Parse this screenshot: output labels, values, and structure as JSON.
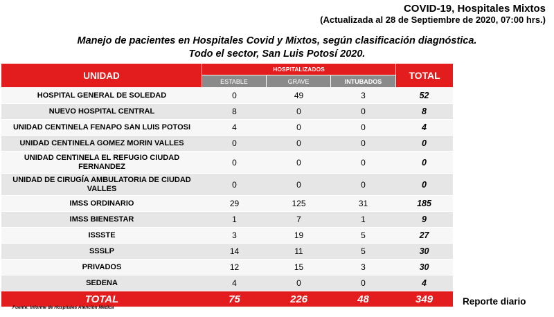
{
  "header": {
    "title": "COVID-19,  Hospitales Mixtos",
    "updated": "(Actualizada al 28 de Septiembre de 2020,  07:00  hrs.)"
  },
  "subtitle": {
    "line1": "Manejo de pacientes en Hospitales Covid y Mixtos, según clasificación diagnóstica.",
    "line2": "Todo el sector, San Luis Potosí 2020."
  },
  "table": {
    "col_unit": "UNIDAD",
    "col_group": "HOSPITALIZADOS",
    "col_total": "TOTAL",
    "sub_cols": [
      "ESTABLE",
      "GRAVE",
      "INTUBADOS"
    ],
    "rows": [
      {
        "unit": "HOSPITAL GENERAL DE SOLEDAD",
        "estable": "0",
        "grave": "49",
        "intubados": "3",
        "total": "52"
      },
      {
        "unit": "NUEVO HOSPITAL CENTRAL",
        "estable": "8",
        "grave": "0",
        "intubados": "0",
        "total": "8"
      },
      {
        "unit": "UNIDAD CENTINELA FENAPO SAN LUIS POTOSI",
        "estable": "4",
        "grave": "0",
        "intubados": "0",
        "total": "4"
      },
      {
        "unit": "UNIDAD CENTINELA GOMEZ MORIN VALLES",
        "estable": "0",
        "grave": "0",
        "intubados": "0",
        "total": "0"
      },
      {
        "unit": "UNIDAD CENTINELA EL REFUGIO CIUDAD FERNANDEZ",
        "estable": "0",
        "grave": "0",
        "intubados": "0",
        "total": "0"
      },
      {
        "unit": "UNIDAD DE CIRUGÍA AMBULATORIA DE CIUDAD VALLES",
        "estable": "0",
        "grave": "0",
        "intubados": "0",
        "total": "0"
      },
      {
        "unit": "IMSS ORDINARIO",
        "estable": "29",
        "grave": "125",
        "intubados": "31",
        "total": "185"
      },
      {
        "unit": "IMSS BIENESTAR",
        "estable": "1",
        "grave": "7",
        "intubados": "1",
        "total": "9"
      },
      {
        "unit": "ISSSTE",
        "estable": "3",
        "grave": "19",
        "intubados": "5",
        "total": "27"
      },
      {
        "unit": "SSSLP",
        "estable": "14",
        "grave": "11",
        "intubados": "5",
        "total": "30"
      },
      {
        "unit": "PRIVADOS",
        "estable": "12",
        "grave": "15",
        "intubados": "3",
        "total": "30"
      },
      {
        "unit": "SEDENA",
        "estable": "4",
        "grave": "0",
        "intubados": "0",
        "total": "4"
      }
    ],
    "totals": {
      "label": "TOTAL",
      "estable": "75",
      "grave": "226",
      "intubados": "48",
      "total": "349"
    }
  },
  "footnote": "Fuente: Informe de Hospitales  Atención  Médica",
  "report_label": "Reporte diario",
  "colors": {
    "header_red": "#e31d1d",
    "subheader_gray": "#8a8a8a",
    "row_light": "#f7f7f7",
    "row_dark": "#e6e6e6"
  }
}
